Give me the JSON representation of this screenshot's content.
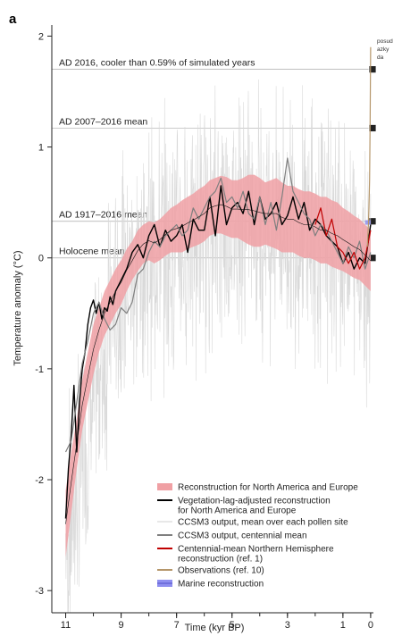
{
  "chart_data": {
    "type": "line",
    "panel_label": "a",
    "xlabel": "Time (kyr BP)",
    "ylabel": "Temperature anomaly (°C)",
    "xlim": [
      11.5,
      -0.1
    ],
    "ylim": [
      -3.2,
      2.1
    ],
    "x_ticks": [
      11,
      9,
      7,
      5,
      3,
      1,
      0
    ],
    "y_ticks": [
      -3,
      -2,
      -1,
      0,
      1,
      2
    ],
    "reference_lines": [
      {
        "label": "AD 2016, cooler than 0.59% of simulated years",
        "y": 1.7,
        "color": "#aaaaaa"
      },
      {
        "label": "AD 2007–2016 mean",
        "y": 1.17,
        "color": "#aaaaaa"
      },
      {
        "label": "AD 1917–2016 mean",
        "y": 0.33,
        "color": "#aaaaaa"
      },
      {
        "label": "Holocene mean",
        "y": 0.0,
        "color": "#aaaaaa"
      }
    ],
    "top_right_text": [
      "posud",
      "azky",
      "da"
    ],
    "series": [
      {
        "name": "Reconstruction for North America and Europe",
        "kind": "band",
        "color": "#f0a0a4",
        "x": [
          11.0,
          10.8,
          10.6,
          10.4,
          10.2,
          10.0,
          9.8,
          9.6,
          9.4,
          9.2,
          9.0,
          8.8,
          8.6,
          8.4,
          8.2,
          8.0,
          7.8,
          7.6,
          7.4,
          7.2,
          7.0,
          6.8,
          6.6,
          6.4,
          6.2,
          6.0,
          5.8,
          5.6,
          5.4,
          5.2,
          5.0,
          4.8,
          4.6,
          4.4,
          4.2,
          4.0,
          3.8,
          3.6,
          3.4,
          3.2,
          3.0,
          2.8,
          2.6,
          2.4,
          2.2,
          2.0,
          1.8,
          1.6,
          1.4,
          1.2,
          1.0,
          0.8,
          0.6,
          0.4,
          0.2,
          0.0
        ],
        "lower": [
          -2.7,
          -2.3,
          -1.9,
          -1.55,
          -1.3,
          -1.05,
          -0.85,
          -0.7,
          -0.6,
          -0.5,
          -0.42,
          -0.3,
          -0.2,
          -0.12,
          -0.05,
          -0.02,
          -0.05,
          -0.02,
          0.02,
          0.05,
          0.05,
          0.05,
          0.08,
          0.1,
          0.12,
          0.15,
          0.2,
          0.22,
          0.22,
          0.2,
          0.18,
          0.18,
          0.15,
          0.12,
          0.1,
          0.1,
          0.12,
          0.1,
          0.08,
          0.05,
          0.05,
          0.05,
          0.02,
          0.0,
          0.0,
          -0.02,
          -0.05,
          -0.05,
          -0.08,
          -0.1,
          -0.12,
          -0.15,
          -0.18,
          -0.2,
          -0.25,
          -0.3
        ],
        "upper": [
          -2.1,
          -1.75,
          -1.45,
          -1.1,
          -0.85,
          -0.6,
          -0.45,
          -0.3,
          -0.2,
          -0.1,
          -0.02,
          0.08,
          0.15,
          0.25,
          0.3,
          0.33,
          0.32,
          0.35,
          0.4,
          0.45,
          0.48,
          0.52,
          0.55,
          0.58,
          0.62,
          0.65,
          0.7,
          0.72,
          0.74,
          0.73,
          0.7,
          0.7,
          0.72,
          0.75,
          0.75,
          0.72,
          0.68,
          0.7,
          0.72,
          0.68,
          0.65,
          0.65,
          0.62,
          0.6,
          0.6,
          0.58,
          0.55,
          0.55,
          0.52,
          0.5,
          0.45,
          0.42,
          0.38,
          0.35,
          0.3,
          0.25
        ]
      },
      {
        "name": "Vegetation-lag-adjusted reconstruction for North America and Europe",
        "kind": "line",
        "color": "#000000",
        "x": [
          11.0,
          10.9,
          10.8,
          10.7,
          10.6,
          10.5,
          10.4,
          10.3,
          10.2,
          10.1,
          10.0,
          9.9,
          9.8,
          9.7,
          9.6,
          9.5,
          9.4,
          9.3,
          9.2,
          9.1,
          9.0,
          8.8,
          8.6,
          8.4,
          8.2,
          8.0,
          7.8,
          7.6,
          7.4,
          7.2,
          7.0,
          6.8,
          6.6,
          6.4,
          6.2,
          6.0,
          5.8,
          5.6,
          5.4,
          5.2,
          5.0,
          4.8,
          4.6,
          4.4,
          4.2,
          4.0,
          3.8,
          3.6,
          3.4,
          3.2,
          3.0,
          2.8,
          2.6,
          2.4,
          2.2,
          2.0,
          1.8,
          1.6,
          1.4,
          1.2,
          1.0,
          0.8,
          0.6,
          0.4,
          0.2,
          0.0
        ],
        "y": [
          -2.35,
          -1.9,
          -1.6,
          -1.15,
          -1.75,
          -1.3,
          -1.0,
          -0.85,
          -0.6,
          -0.45,
          -0.38,
          -0.5,
          -0.4,
          -0.55,
          -0.45,
          -0.48,
          -0.35,
          -0.42,
          -0.3,
          -0.25,
          -0.2,
          -0.1,
          0.05,
          0.12,
          0.0,
          0.2,
          0.3,
          0.1,
          0.25,
          0.15,
          0.2,
          0.3,
          0.05,
          0.35,
          0.25,
          0.25,
          0.55,
          0.2,
          0.65,
          0.3,
          0.45,
          0.5,
          0.4,
          0.6,
          0.3,
          0.55,
          0.35,
          0.4,
          0.5,
          0.3,
          0.38,
          0.55,
          0.35,
          0.5,
          0.25,
          0.35,
          0.3,
          0.2,
          0.15,
          0.1,
          -0.05,
          0.05,
          -0.1,
          0.0,
          -0.05,
          0.3
        ]
      },
      {
        "name": "CCSM3 output, mean over each pollen site",
        "kind": "noise",
        "color": "#d9d9d9",
        "x": [
          11.0,
          10.5,
          10.0,
          9.5,
          9.0,
          8.5,
          8.0,
          7.5,
          7.0,
          6.5,
          6.0,
          5.5,
          5.0,
          4.5,
          4.0,
          3.5,
          3.0,
          2.5,
          2.0,
          1.5,
          1.0,
          0.5,
          0.0
        ],
        "y": [
          -2.6,
          -2.0,
          -1.3,
          -0.7,
          -0.3,
          -0.1,
          0.05,
          0.1,
          0.15,
          0.2,
          0.3,
          0.35,
          0.4,
          0.4,
          0.38,
          0.35,
          0.32,
          0.3,
          0.25,
          0.2,
          0.15,
          0.05,
          0.0
        ]
      },
      {
        "name": "CCSM3 output, centennial mean",
        "kind": "line",
        "color": "#7f7f7f",
        "x": [
          11.0,
          10.8,
          10.6,
          10.4,
          10.2,
          10.0,
          9.8,
          9.6,
          9.4,
          9.2,
          9.0,
          8.8,
          8.6,
          8.4,
          8.2,
          8.0,
          7.8,
          7.6,
          7.4,
          7.2,
          7.0,
          6.8,
          6.6,
          6.4,
          6.2,
          6.0,
          5.8,
          5.6,
          5.4,
          5.2,
          5.0,
          4.8,
          4.6,
          4.4,
          4.2,
          4.0,
          3.8,
          3.6,
          3.4,
          3.2,
          3.0,
          2.8,
          2.6,
          2.4,
          2.2,
          2.0,
          1.8,
          1.6,
          1.4,
          1.2,
          1.0,
          0.8,
          0.6,
          0.4,
          0.2,
          0.0
        ],
        "y": [
          -1.75,
          -1.65,
          -1.3,
          -0.95,
          -0.75,
          -0.5,
          -0.4,
          -0.55,
          -0.65,
          -0.6,
          -0.45,
          -0.5,
          -0.4,
          -0.15,
          -0.1,
          0.05,
          0.15,
          0.1,
          0.2,
          0.25,
          0.3,
          0.2,
          0.25,
          0.45,
          0.35,
          0.45,
          0.55,
          0.6,
          0.72,
          0.5,
          0.55,
          0.45,
          0.6,
          0.4,
          0.35,
          0.55,
          0.3,
          0.5,
          0.25,
          0.55,
          0.9,
          0.6,
          0.5,
          0.4,
          0.35,
          0.2,
          0.3,
          0.25,
          0.15,
          0.05,
          -0.05,
          0.1,
          0.0,
          0.15,
          -0.1,
          0.05
        ]
      },
      {
        "name": "Centennial-mean Northern Hemisphere reconstruction (ref. 1)",
        "kind": "line",
        "color": "#c00000",
        "x": [
          2.0,
          1.8,
          1.6,
          1.4,
          1.2,
          1.0,
          0.8,
          0.6,
          0.4,
          0.2,
          0.0
        ],
        "y": [
          0.3,
          0.45,
          0.2,
          0.35,
          0.1,
          0.05,
          -0.05,
          0.05,
          -0.1,
          0.0,
          0.25
        ]
      },
      {
        "name": "Observations (ref. 10)",
        "kind": "line",
        "color": "#b5966a",
        "x": [
          0.12,
          0.1,
          0.08,
          0.06,
          0.04,
          0.02,
          0.0
        ],
        "y": [
          0.1,
          0.2,
          0.3,
          0.45,
          0.7,
          1.2,
          1.9
        ]
      },
      {
        "name": "Marine reconstruction",
        "kind": "band",
        "color": "#8f8ff0",
        "x": [
          0.2,
          0.0
        ],
        "lower": [
          0.3,
          0.3
        ],
        "upper": [
          0.34,
          0.34
        ]
      }
    ]
  }
}
